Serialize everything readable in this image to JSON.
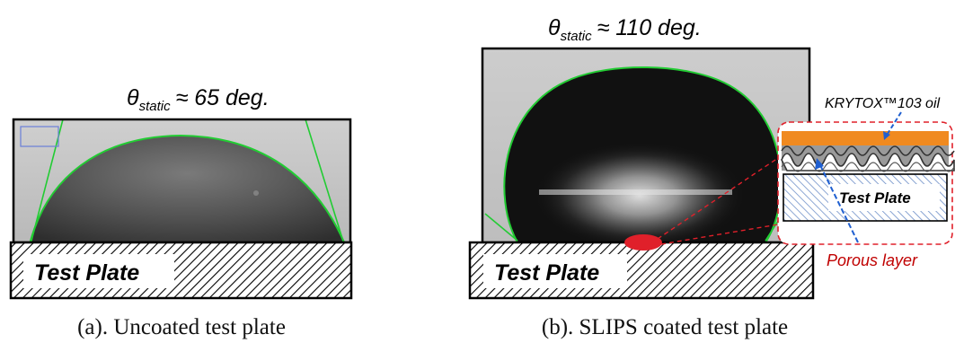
{
  "panel_a": {
    "angle_prefix": "θ",
    "angle_sub": "static",
    "angle_value": "≈ 65 deg.",
    "plate_label": "Test Plate",
    "caption": "(a). Uncoated test plate"
  },
  "panel_b": {
    "angle_prefix": "θ",
    "angle_sub": "static",
    "angle_value": "≈ 110 deg.",
    "plate_label": "Test Plate",
    "caption": "(b). SLIPS coated test plate",
    "inset": {
      "oil_label": "KRYTOX™103 oil",
      "plate_label": "Test Plate",
      "porous_label": "Porous layer"
    }
  },
  "colors": {
    "contact_fit": "#22cc33",
    "oil_layer": "#f08a20",
    "callout": "#e0202a",
    "arrow": "#1f5fd0",
    "porous_text": "#c00000"
  }
}
